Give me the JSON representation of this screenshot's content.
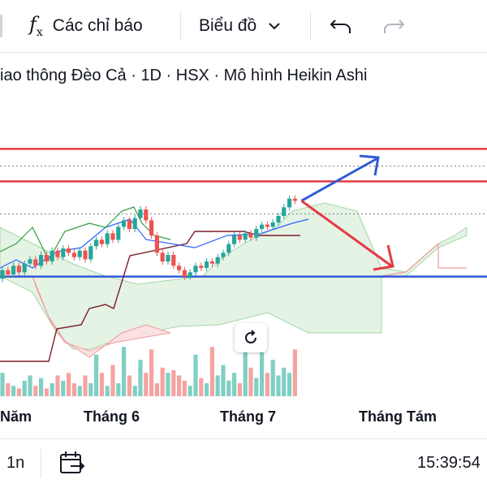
{
  "toolbar": {
    "indicators_icon": "fx-icon",
    "indicators_label": "Các chỉ báo",
    "chart_type_label": "Biểu đồ",
    "undo_icon": "undo-icon",
    "redo_icon": "redo-icon"
  },
  "symbol": {
    "title": "iao thông Đèo Cả · 1D · HSX · Mô hình Heikin Ashi"
  },
  "xaxis": {
    "labels": [
      "Năm",
      "Tháng 6",
      "Tháng 7",
      "Tháng Tám"
    ]
  },
  "bottombar": {
    "interval": "1n",
    "calendar_icon": "calendar-goto-icon",
    "time": "15:39:54"
  },
  "colors": {
    "up": "#26a69a",
    "down": "#ef5350",
    "hline_red": "#e53945",
    "hline_blue": "#2f5bd6",
    "arrow_blue": "#2f5bd6",
    "arrow_red": "#e53945",
    "cloud_green": "#e4f3e4",
    "cloud_red": "#fbe2e2"
  },
  "chart_data": {
    "type": "candlestick",
    "title": "",
    "series_style": "Heikin Ashi",
    "candles": [
      {
        "o": 100,
        "c": 104
      },
      {
        "o": 104,
        "c": 102
      },
      {
        "o": 102,
        "c": 106
      },
      {
        "o": 106,
        "c": 103
      },
      {
        "o": 103,
        "c": 107
      },
      {
        "o": 107,
        "c": 109
      },
      {
        "o": 109,
        "c": 106
      },
      {
        "o": 106,
        "c": 111
      },
      {
        "o": 111,
        "c": 108
      },
      {
        "o": 108,
        "c": 113
      },
      {
        "o": 113,
        "c": 110
      },
      {
        "o": 110,
        "c": 114
      },
      {
        "o": 114,
        "c": 112
      },
      {
        "o": 112,
        "c": 110
      },
      {
        "o": 110,
        "c": 113
      },
      {
        "o": 113,
        "c": 109
      },
      {
        "o": 109,
        "c": 115
      },
      {
        "o": 115,
        "c": 118
      },
      {
        "o": 118,
        "c": 116
      },
      {
        "o": 116,
        "c": 121
      },
      {
        "o": 121,
        "c": 118
      },
      {
        "o": 118,
        "c": 124
      },
      {
        "o": 124,
        "c": 127
      },
      {
        "o": 127,
        "c": 123
      },
      {
        "o": 123,
        "c": 128
      },
      {
        "o": 128,
        "c": 132
      },
      {
        "o": 132,
        "c": 127
      },
      {
        "o": 127,
        "c": 120
      },
      {
        "o": 120,
        "c": 112
      },
      {
        "o": 112,
        "c": 108
      },
      {
        "o": 108,
        "c": 111
      },
      {
        "o": 111,
        "c": 106
      },
      {
        "o": 106,
        "c": 104
      },
      {
        "o": 104,
        "c": 101
      },
      {
        "o": 101,
        "c": 103
      },
      {
        "o": 103,
        "c": 106
      },
      {
        "o": 106,
        "c": 105
      },
      {
        "o": 105,
        "c": 108
      },
      {
        "o": 108,
        "c": 107
      },
      {
        "o": 107,
        "c": 110
      },
      {
        "o": 110,
        "c": 112
      },
      {
        "o": 112,
        "c": 116
      },
      {
        "o": 116,
        "c": 120
      },
      {
        "o": 120,
        "c": 118
      },
      {
        "o": 118,
        "c": 121
      },
      {
        "o": 121,
        "c": 119
      },
      {
        "o": 119,
        "c": 123
      },
      {
        "o": 123,
        "c": 125
      },
      {
        "o": 125,
        "c": 124
      },
      {
        "o": 124,
        "c": 126
      },
      {
        "o": 126,
        "c": 129
      },
      {
        "o": 129,
        "c": 133
      },
      {
        "o": 133,
        "c": 137
      },
      {
        "o": 137,
        "c": 136
      }
    ],
    "volume": [
      9,
      5,
      4,
      3,
      6,
      8,
      4,
      7,
      3,
      5,
      8,
      6,
      9,
      5,
      4,
      8,
      5,
      16,
      9,
      4,
      12,
      5,
      19,
      8,
      4,
      14,
      9,
      18,
      5,
      11,
      9,
      10,
      8,
      6,
      4,
      16,
      7,
      5,
      19,
      8,
      12,
      6,
      9,
      5,
      26,
      11,
      7,
      19,
      9,
      14,
      8,
      11,
      9,
      18
    ],
    "horizontal_lines": [
      {
        "price": 160,
        "color": "#e53945"
      },
      {
        "price": 145,
        "color": "#e53945"
      },
      {
        "price": 101,
        "color": "#2f5bd6"
      }
    ],
    "dotted_levels": [
      152,
      130
    ]
  }
}
